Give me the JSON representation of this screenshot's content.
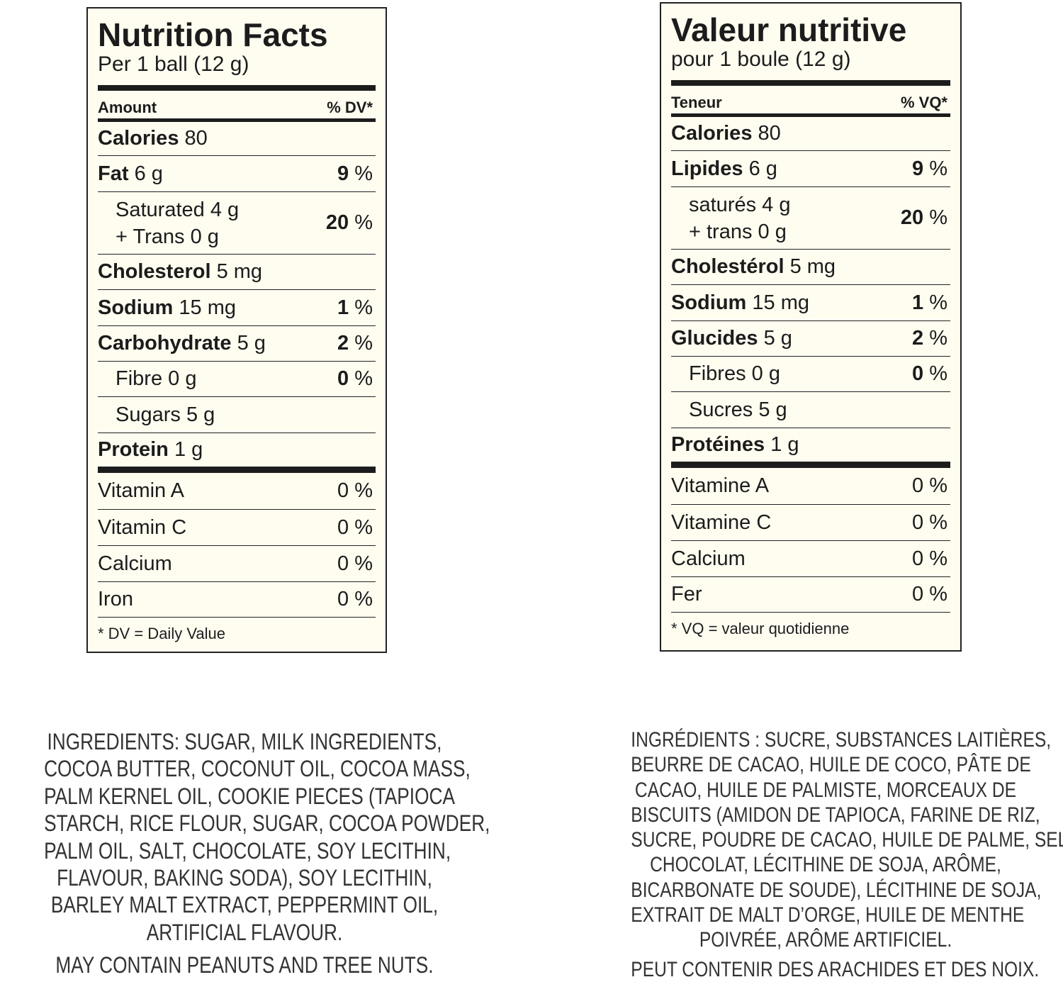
{
  "panels": [
    {
      "title": "Nutrition Facts",
      "serving": "Per 1 ball (12 g)",
      "header": {
        "amount": "Amount",
        "dv": "% DV*"
      },
      "rows": [
        {
          "name": "Calories",
          "amount": "80"
        },
        {
          "name": "Fat",
          "amount": "6 g",
          "dv": "9",
          "pct": "%"
        },
        {
          "name": "Saturated",
          "amount": "4 g",
          "name2": "+ Trans",
          "amount2": "0 g",
          "dv": "20",
          "pct": "%"
        },
        {
          "name": "Cholesterol",
          "amount": "5 mg"
        },
        {
          "name": "Sodium",
          "amount": "15 mg",
          "dv": "1",
          "pct": "%"
        },
        {
          "name": "Carbohydrate",
          "amount": "5 g",
          "dv": "2",
          "pct": "%"
        },
        {
          "name": "Fibre",
          "amount": "0 g",
          "dv": "0",
          "pct": "%"
        },
        {
          "name": "Sugars",
          "amount": "5 g"
        },
        {
          "name": "Protein",
          "amount": "1 g"
        },
        {
          "name": "Vitamin A",
          "dv": "0",
          "pct": "%"
        },
        {
          "name": "Vitamin C",
          "dv": "0",
          "pct": "%"
        },
        {
          "name": "Calcium",
          "dv": "0",
          "pct": "%"
        },
        {
          "name": "Iron",
          "dv": "0",
          "pct": "%"
        }
      ],
      "footnote": "* DV = Daily Value",
      "ingredients": {
        "lines": [
          "INGREDIENTS: SUGAR, MILK INGREDIENTS,",
          "COCOA BUTTER, COCONUT OIL, COCOA MASS,",
          "PALM KERNEL OIL, COOKIE PIECES (TAPIOCA",
          "STARCH, RICE FLOUR, SUGAR, COCOA POWDER,",
          "PALM OIL, SALT, CHOCOLATE, SOY LECITHIN,",
          "FLAVOUR, BAKING SODA), SOY LECITHIN,",
          "BARLEY MALT EXTRACT, PEPPERMINT OIL,",
          "ARTIFICIAL FLAVOUR."
        ],
        "allergens": "MAY CONTAIN PEANUTS AND TREE NUTS."
      }
    },
    {
      "title": "Valeur nutritive",
      "serving": "pour 1 boule (12 g)",
      "header": {
        "amount": "Teneur",
        "dv": "% VQ*"
      },
      "rows": [
        {
          "name": "Calories",
          "amount": "80"
        },
        {
          "name": "Lipides",
          "amount": "6 g",
          "dv": "9",
          "pct": "%"
        },
        {
          "name": "saturés",
          "amount": "4 g",
          "name2": "+ trans",
          "amount2": "0 g",
          "dv": "20",
          "pct": "%"
        },
        {
          "name": "Cholestérol",
          "amount": "5 mg"
        },
        {
          "name": "Sodium",
          "amount": "15 mg",
          "dv": "1",
          "pct": "%"
        },
        {
          "name": "Glucides",
          "amount": "5 g",
          "dv": "2",
          "pct": "%"
        },
        {
          "name": "Fibres",
          "amount": "0 g",
          "dv": "0",
          "pct": "%"
        },
        {
          "name": "Sucres",
          "amount": "5 g"
        },
        {
          "name": "Protéines",
          "amount": "1 g"
        },
        {
          "name": "Vitamine A",
          "dv": "0",
          "pct": "%"
        },
        {
          "name": "Vitamine C",
          "dv": "0",
          "pct": "%"
        },
        {
          "name": "Calcium",
          "dv": "0",
          "pct": "%"
        },
        {
          "name": "Fer",
          "dv": "0",
          "pct": "%"
        }
      ],
      "footnote": "* VQ = valeur quotidienne",
      "ingredients": {
        "lines": [
          "INGRÉDIENTS : SUCRE, SUBSTANCES LAITIÈRES,",
          "BEURRE DE CACAO, HUILE DE COCO, PÂTE DE",
          "CACAO, HUILE DE PALMISTE, MORCEAUX DE",
          "BISCUITS (AMIDON DE TAPIOCA, FARINE DE RIZ,",
          "SUCRE, POUDRE DE CACAO, HUILE DE PALME, SEL,",
          "CHOCOLAT, LÉCITHINE DE SOJA, ARÔME,",
          "BICARBONATE DE SOUDE), LÉCITHINE DE SOJA,",
          "EXTRAIT DE MALT D’ORGE, HUILE DE MENTHE",
          "POIVRÉE, ARÔME ARTIFICIEL."
        ],
        "allergens": "PEUT CONTENIR DES ARACHIDES ET DES NOIX."
      }
    }
  ]
}
